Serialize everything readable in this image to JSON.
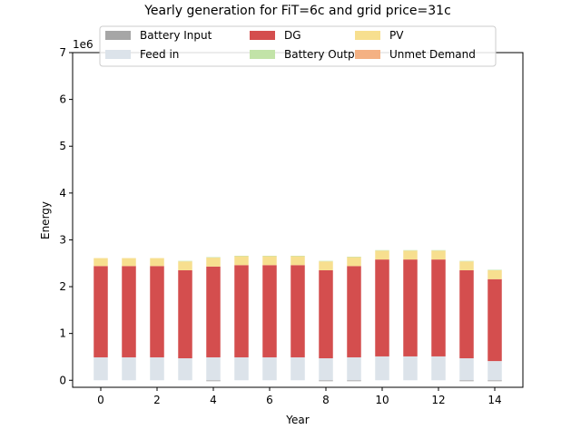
{
  "chart_data": {
    "type": "bar",
    "stacked": true,
    "title": "Yearly generation for FiT=6c and grid price=31c",
    "xlabel": "Year",
    "ylabel": "Energy",
    "y_scale_label": "1e6",
    "x": [
      0,
      1,
      2,
      3,
      4,
      5,
      6,
      7,
      8,
      9,
      10,
      11,
      12,
      13,
      14
    ],
    "xticks": [
      0,
      2,
      4,
      6,
      8,
      10,
      12,
      14
    ],
    "yticks": [
      0,
      1,
      2,
      3,
      4,
      5,
      6,
      7
    ],
    "xlim": [
      -1,
      15
    ],
    "ylim": [
      -0.15,
      7
    ],
    "grid": false,
    "legend_position": "top-center",
    "legend_columns": 3,
    "series": [
      {
        "name": "Battery Input",
        "color": "#a6a6a6",
        "values": [
          0,
          0,
          0,
          0,
          -0.02,
          0,
          0,
          0,
          -0.02,
          -0.02,
          0,
          0,
          0,
          -0.02,
          -0.02
        ]
      },
      {
        "name": "Feed in",
        "color": "#dce3ea",
        "values": [
          0.49,
          0.49,
          0.49,
          0.47,
          0.49,
          0.49,
          0.49,
          0.49,
          0.47,
          0.49,
          0.51,
          0.51,
          0.51,
          0.47,
          0.41
        ]
      },
      {
        "name": "DG",
        "color": "#d44e4e",
        "values": [
          1.95,
          1.95,
          1.95,
          1.88,
          1.94,
          1.97,
          1.97,
          1.97,
          1.88,
          1.95,
          2.07,
          2.07,
          2.07,
          1.88,
          1.75
        ]
      },
      {
        "name": "PV",
        "color": "#f7df8f",
        "values": [
          0.17,
          0.17,
          0.17,
          0.19,
          0.19,
          0.19,
          0.19,
          0.19,
          0.19,
          0.19,
          0.19,
          0.19,
          0.19,
          0.19,
          0.19
        ]
      },
      {
        "name": "Battery Output",
        "color": "#c2e3a8",
        "values": [
          0,
          0,
          0,
          0.01,
          0.01,
          0.01,
          0.01,
          0.01,
          0.01,
          0.01,
          0.01,
          0.01,
          0.01,
          0.01,
          0.01
        ]
      },
      {
        "name": "Unmet Demand",
        "color": "#f4b183",
        "values": [
          0,
          0,
          0,
          0,
          0,
          0,
          0,
          0,
          0,
          0,
          0,
          0,
          0,
          0,
          0
        ]
      }
    ],
    "legend_order": [
      "Battery Input",
      "DG",
      "PV",
      "Feed in",
      "Battery Output",
      "Unmet Demand"
    ]
  }
}
